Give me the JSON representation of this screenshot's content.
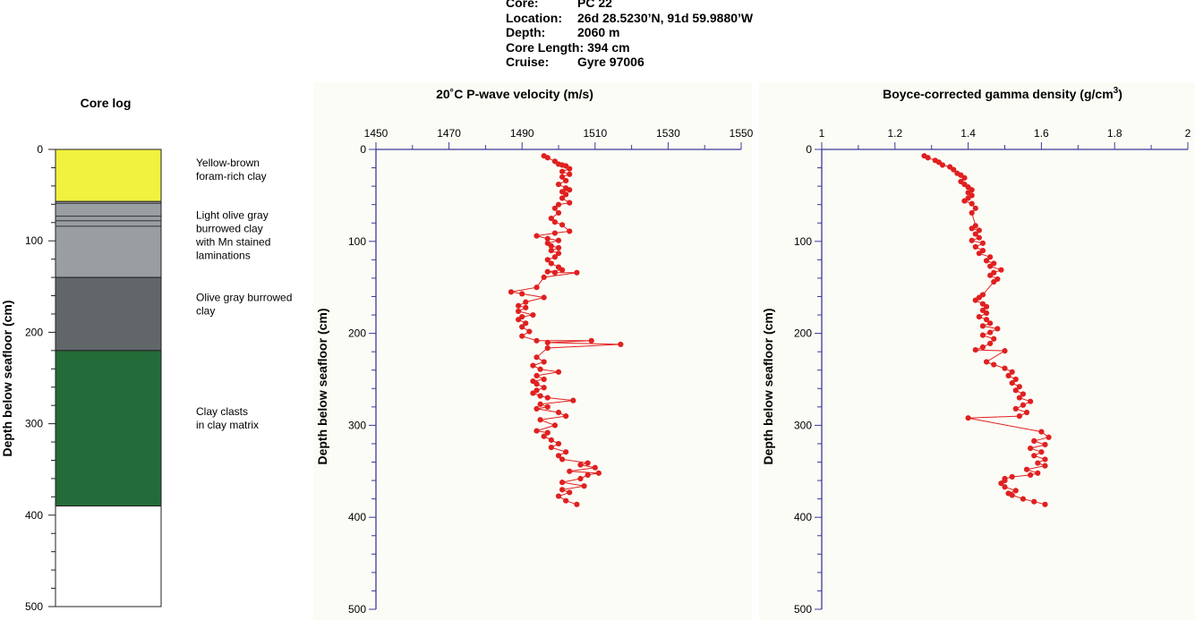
{
  "header": {
    "rows": [
      {
        "label": "Core:",
        "value": "PC 22"
      },
      {
        "label": "Location:",
        "value": "26d 28.5230’N, 91d 59.9880’W"
      },
      {
        "label": "Depth:",
        "value": "2060 m"
      },
      {
        "label": "Core Length:",
        "value": "394 cm"
      },
      {
        "label": "Cruise:",
        "value": "Gyre 97006"
      }
    ]
  },
  "colors": {
    "data_red": "#e02020",
    "axis_blue": "#3a3a9a",
    "plot_bg": "#fcfcf6",
    "yellow": "#f1f13f",
    "light_gray": "#9a9ea3",
    "gray_mid": "#a3a6aa",
    "dark_gray": "#616669",
    "green": "#236b38"
  },
  "core_log": {
    "title": "Core log",
    "ylabel": "Depth below seafloor (cm)",
    "yticks": [
      "0",
      "100",
      "200",
      "300",
      "400",
      "500"
    ],
    "ylim": [
      0,
      500
    ],
    "layers": [
      {
        "top": 0,
        "bottom": 57,
        "color": "#f1f13f"
      },
      {
        "top": 57,
        "bottom": 140,
        "color": "#9a9ea3"
      },
      {
        "top": 140,
        "bottom": 220,
        "color": "#616669"
      },
      {
        "top": 220,
        "bottom": 390,
        "color": "#236b38"
      },
      {
        "top": 390,
        "bottom": 500,
        "color": "#ffffff"
      }
    ],
    "laminations": [
      59,
      73,
      78,
      84
    ],
    "descriptions": [
      {
        "depth": 10,
        "lines": [
          "Yellow-brown",
          "foram-rich clay"
        ]
      },
      {
        "depth": 67,
        "lines": [
          "Light olive gray",
          "burrowed clay",
          "with Mn stained",
          "laminations"
        ]
      },
      {
        "depth": 157,
        "lines": [
          "Olive gray burrowed",
          "clay"
        ]
      },
      {
        "depth": 282,
        "lines": [
          "Clay clasts",
          "in clay matrix"
        ]
      }
    ]
  },
  "chart_data": [
    {
      "type": "scatter",
      "title": "20˚C P-wave velocity (m/s)",
      "xlabel": "",
      "ylabel": "Depth below seafloor (cm)",
      "xlim": [
        1450,
        1550
      ],
      "ylim": [
        0,
        500
      ],
      "xticks": [
        "1450",
        "1470",
        "1490",
        "1510",
        "1530",
        "1550"
      ],
      "yticks": [
        "0",
        "100",
        "200",
        "300",
        "400",
        "500"
      ],
      "series": [
        {
          "x": [
            1496,
            1497,
            1499,
            1500,
            1501,
            1502,
            1503,
            1501,
            1503,
            1501,
            1502,
            1500,
            1502,
            1503,
            1501,
            1502,
            1501,
            1503,
            1500,
            1499,
            1500,
            1498,
            1499,
            1501,
            1503,
            1499,
            1494,
            1497,
            1500,
            1497,
            1498,
            1500,
            1498,
            1500,
            1499,
            1497,
            1498,
            1500,
            1501,
            1497,
            1499,
            1505,
            1496,
            1494,
            1487,
            1490,
            1496,
            1491,
            1489,
            1491,
            1489,
            1493,
            1490,
            1489,
            1491,
            1490,
            1492,
            1490,
            1494,
            1509,
            1497,
            1517,
            1497,
            1494,
            1496,
            1493,
            1495,
            1500,
            1494,
            1496,
            1493,
            1494,
            1496,
            1494,
            1493,
            1495,
            1497,
            1504,
            1495,
            1497,
            1494,
            1500,
            1502,
            1495,
            1499,
            1494,
            1497,
            1496,
            1498,
            1500,
            1498,
            1502,
            1500,
            1501,
            1508,
            1506,
            1510,
            1503,
            1511,
            1508,
            1506,
            1501,
            1507,
            1501,
            1503,
            1500,
            1502,
            1505
          ],
          "y": [
            7,
            9,
            13,
            16,
            17,
            18,
            21,
            24,
            27,
            30,
            34,
            38,
            42,
            44,
            46,
            49,
            53,
            58,
            60,
            64,
            69,
            75,
            79,
            82,
            89,
            91,
            94,
            97,
            99,
            102,
            105,
            107,
            110,
            113,
            117,
            120,
            124,
            128,
            131,
            133,
            134,
            134,
            139,
            150,
            155,
            157,
            161,
            166,
            170,
            172,
            176,
            180,
            182,
            185,
            189,
            193,
            198,
            203,
            208,
            208,
            210,
            212,
            216,
            226,
            231,
            235,
            239,
            242,
            246,
            250,
            252,
            255,
            259,
            262,
            265,
            268,
            270,
            273,
            277,
            280,
            282,
            286,
            290,
            294,
            300,
            306,
            308,
            312,
            316,
            320,
            324,
            329,
            333,
            337,
            341,
            343,
            346,
            350,
            352,
            354,
            358,
            362,
            366,
            370,
            373,
            377,
            382,
            386
          ]
        }
      ]
    },
    {
      "type": "scatter",
      "title": "Boyce-corrected gamma density (g/cm³)",
      "xlabel": "",
      "ylabel": "Depth below seafloor (cm)",
      "xlim": [
        1,
        2
      ],
      "ylim": [
        0,
        500
      ],
      "xticks": [
        "1",
        "1.2",
        "1.4",
        "1.6",
        "1.8",
        "2"
      ],
      "yticks": [
        "0",
        "100",
        "200",
        "300",
        "400",
        "500"
      ],
      "series": [
        {
          "x": [
            1.28,
            1.29,
            1.31,
            1.32,
            1.33,
            1.35,
            1.36,
            1.37,
            1.38,
            1.39,
            1.38,
            1.39,
            1.4,
            1.41,
            1.4,
            1.41,
            1.4,
            1.39,
            1.41,
            1.42,
            1.41,
            1.42,
            1.41,
            1.43,
            1.42,
            1.43,
            1.41,
            1.44,
            1.42,
            1.44,
            1.43,
            1.46,
            1.45,
            1.47,
            1.46,
            1.49,
            1.47,
            1.46,
            1.48,
            1.47,
            1.44,
            1.43,
            1.42,
            1.44,
            1.45,
            1.44,
            1.45,
            1.43,
            1.45,
            1.46,
            1.44,
            1.48,
            1.46,
            1.44,
            1.47,
            1.46,
            1.44,
            1.42,
            1.5,
            1.45,
            1.47,
            1.5,
            1.52,
            1.51,
            1.53,
            1.52,
            1.54,
            1.53,
            1.55,
            1.54,
            1.57,
            1.55,
            1.53,
            1.56,
            1.54,
            1.4,
            1.6,
            1.62,
            1.58,
            1.61,
            1.57,
            1.6,
            1.58,
            1.61,
            1.59,
            1.61,
            1.56,
            1.59,
            1.57,
            1.52,
            1.5,
            1.5,
            1.49,
            1.5,
            1.53,
            1.51,
            1.52,
            1.55,
            1.58,
            1.61
          ],
          "y": [
            7,
            9,
            12,
            14,
            17,
            19,
            22,
            26,
            28,
            31,
            35,
            38,
            41,
            44,
            47,
            50,
            53,
            56,
            59,
            64,
            69,
            83,
            86,
            88,
            92,
            96,
            99,
            102,
            106,
            110,
            113,
            117,
            121,
            124,
            127,
            131,
            134,
            137,
            141,
            144,
            158,
            161,
            164,
            168,
            171,
            175,
            178,
            182,
            185,
            189,
            192,
            195,
            199,
            202,
            206,
            211,
            215,
            218,
            219,
            231,
            234,
            238,
            242,
            246,
            250,
            254,
            258,
            262,
            266,
            270,
            274,
            278,
            282,
            286,
            290,
            292,
            307,
            313,
            317,
            321,
            325,
            329,
            333,
            337,
            341,
            344,
            348,
            352,
            354,
            356,
            358,
            360,
            363,
            367,
            371,
            374,
            376,
            380,
            383,
            386
          ]
        }
      ]
    }
  ]
}
